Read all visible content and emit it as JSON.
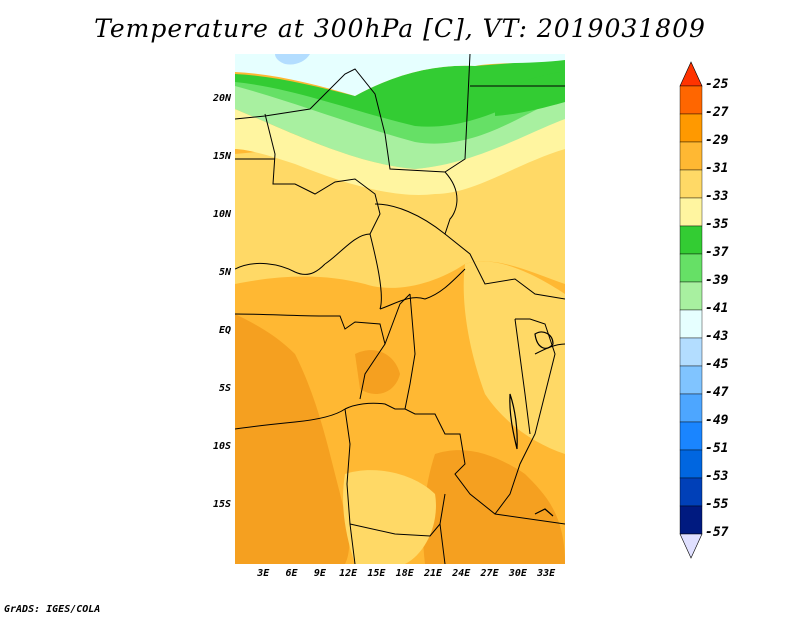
{
  "title": "Temperature at 300hPa [C], VT: 2019031809",
  "credit": "GrADS: IGES/COLA",
  "map": {
    "variable": "Temperature at 300hPa",
    "units": "C",
    "valid_time": "2019031809",
    "lon_range": [
      0,
      35
    ],
    "lat_range": [
      -20,
      24
    ],
    "lat_ticks": [
      {
        "value": 20,
        "label": "20N"
      },
      {
        "value": 15,
        "label": "15N"
      },
      {
        "value": 10,
        "label": "10N"
      },
      {
        "value": 5,
        "label": "5N"
      },
      {
        "value": 0,
        "label": "EQ"
      },
      {
        "value": -5,
        "label": "5S"
      },
      {
        "value": -10,
        "label": "10S"
      },
      {
        "value": -15,
        "label": "15S"
      }
    ],
    "lon_ticks": [
      {
        "value": 3,
        "label": "3E"
      },
      {
        "value": 6,
        "label": "6E"
      },
      {
        "value": 9,
        "label": "9E"
      },
      {
        "value": 12,
        "label": "12E"
      },
      {
        "value": 15,
        "label": "15E"
      },
      {
        "value": 18,
        "label": "18E"
      },
      {
        "value": 21,
        "label": "21E"
      },
      {
        "value": 24,
        "label": "24E"
      },
      {
        "value": 27,
        "label": "27E"
      },
      {
        "value": 30,
        "label": "30E"
      },
      {
        "value": 33,
        "label": "33E"
      }
    ]
  },
  "colorbar": {
    "levels": [
      "-25",
      "-27",
      "-29",
      "-31",
      "-33",
      "-35",
      "-37",
      "-39",
      "-41",
      "-43",
      "-45",
      "-47",
      "-49",
      "-51",
      "-53",
      "-55",
      "-57"
    ],
    "colors": [
      "#ff3300",
      "#ff6600",
      "#ff9900",
      "#ffb833",
      "#ffd966",
      "#fff5a0",
      "#33cc33",
      "#66e066",
      "#a8f0a0",
      "#e6ffff",
      "#b3ddff",
      "#80c4ff",
      "#4da6ff",
      "#1a85ff",
      "#0066e0",
      "#0040b8",
      "#001a80",
      "#e0e0ff"
    ]
  },
  "field_colors": {
    "very_warm": "#f5a020",
    "warm": "#ffb833",
    "mid": "#ffd966",
    "cool": "#fff5a0",
    "green_dark": "#33cc33",
    "green_mid": "#66e066",
    "green_light": "#a8f0a0",
    "cyan": "#e6ffff",
    "blue_light": "#b3ddff"
  }
}
